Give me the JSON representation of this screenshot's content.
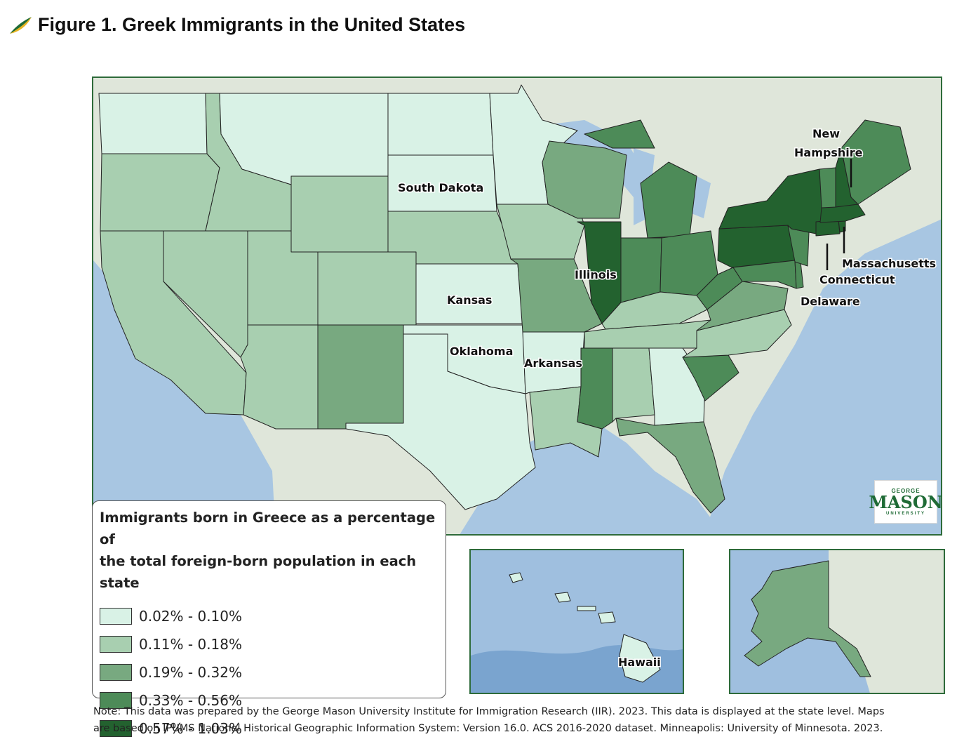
{
  "figure": {
    "title": "Figure 1. Greek Immigrants in the United States"
  },
  "colors": {
    "ocean": "#a8c6e2",
    "land_background": "#dfe6da",
    "c1": "#d9f2e6",
    "c2": "#a8cfb0",
    "c3": "#78a980",
    "c4": "#4d8b58",
    "c5": "#23622f",
    "border_green": "#2e6b3a"
  },
  "legend": {
    "title_line1": "Immigrants born in Greece as a percentage of",
    "title_line2": "the total foreign-born population in each state",
    "classes": [
      {
        "label": "0.02% - 0.10%",
        "color": "#d9f2e6"
      },
      {
        "label": "0.11% - 0.18%",
        "color": "#a8cfb0"
      },
      {
        "label": "0.19% - 0.32%",
        "color": "#78a980"
      },
      {
        "label": "0.33% - 0.56%",
        "color": "#4d8b58"
      },
      {
        "label": "0.57% - 1.03%",
        "color": "#23622f"
      }
    ]
  },
  "labels": {
    "south_dakota": "South Dakota",
    "kansas": "Kansas",
    "oklahoma": "Oklahoma",
    "arkansas": "Arkansas",
    "illinois": "Illinois",
    "new_hampshire_1": "New",
    "new_hampshire_2": "Hampshire",
    "massachusetts": "Massachusetts",
    "connecticut": "Connecticut",
    "delaware": "Delaware",
    "hawaii": "Hawaii"
  },
  "logo": {
    "top": "GEORGE",
    "main": "MASON",
    "bottom": "UNIVERSITY"
  },
  "note": {
    "line1": "Note: This data was prepared by the George Mason University Institute for Immigration Research (IIR). 2023. This data is displayed at the state level. Maps",
    "line2": "are based on IPUMS National Historical Geographic Information System: Version 16.0. ACS 2016-2020 dataset. Minneapolis: University of Minnesota. 2023."
  }
}
